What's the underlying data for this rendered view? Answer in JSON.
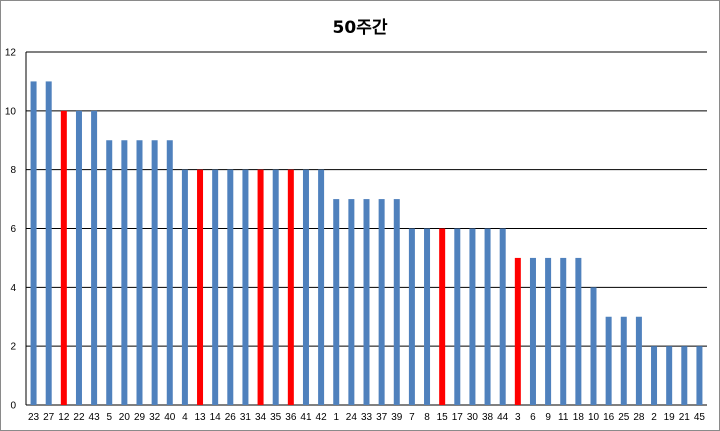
{
  "chart_data": {
    "type": "bar",
    "title": "50주간",
    "xlabel": "",
    "ylabel": "",
    "ylim": [
      0,
      12
    ],
    "yticks": [
      0,
      2,
      4,
      6,
      8,
      10,
      12
    ],
    "grid": true,
    "legend": "none",
    "categories": [
      "23",
      "27",
      "12",
      "22",
      "43",
      "5",
      "20",
      "29",
      "32",
      "40",
      "4",
      "13",
      "14",
      "26",
      "31",
      "34",
      "35",
      "36",
      "41",
      "42",
      "1",
      "24",
      "33",
      "37",
      "39",
      "7",
      "8",
      "15",
      "17",
      "30",
      "38",
      "44",
      "3",
      "6",
      "9",
      "11",
      "18",
      "10",
      "16",
      "25",
      "28",
      "2",
      "19",
      "21",
      "45"
    ],
    "values": [
      11,
      11,
      10,
      10,
      10,
      9,
      9,
      9,
      9,
      9,
      8,
      8,
      8,
      8,
      8,
      8,
      8,
      8,
      8,
      8,
      7,
      7,
      7,
      7,
      7,
      6,
      6,
      6,
      6,
      6,
      6,
      6,
      5,
      5,
      5,
      5,
      5,
      4,
      3,
      3,
      3,
      2,
      2,
      2,
      2
    ],
    "highlighted": [
      "12",
      "13",
      "34",
      "36",
      "15",
      "3"
    ],
    "colors": {
      "bar": "#4f81bd",
      "highlight": "#ff0000",
      "grid": "#000000"
    }
  }
}
